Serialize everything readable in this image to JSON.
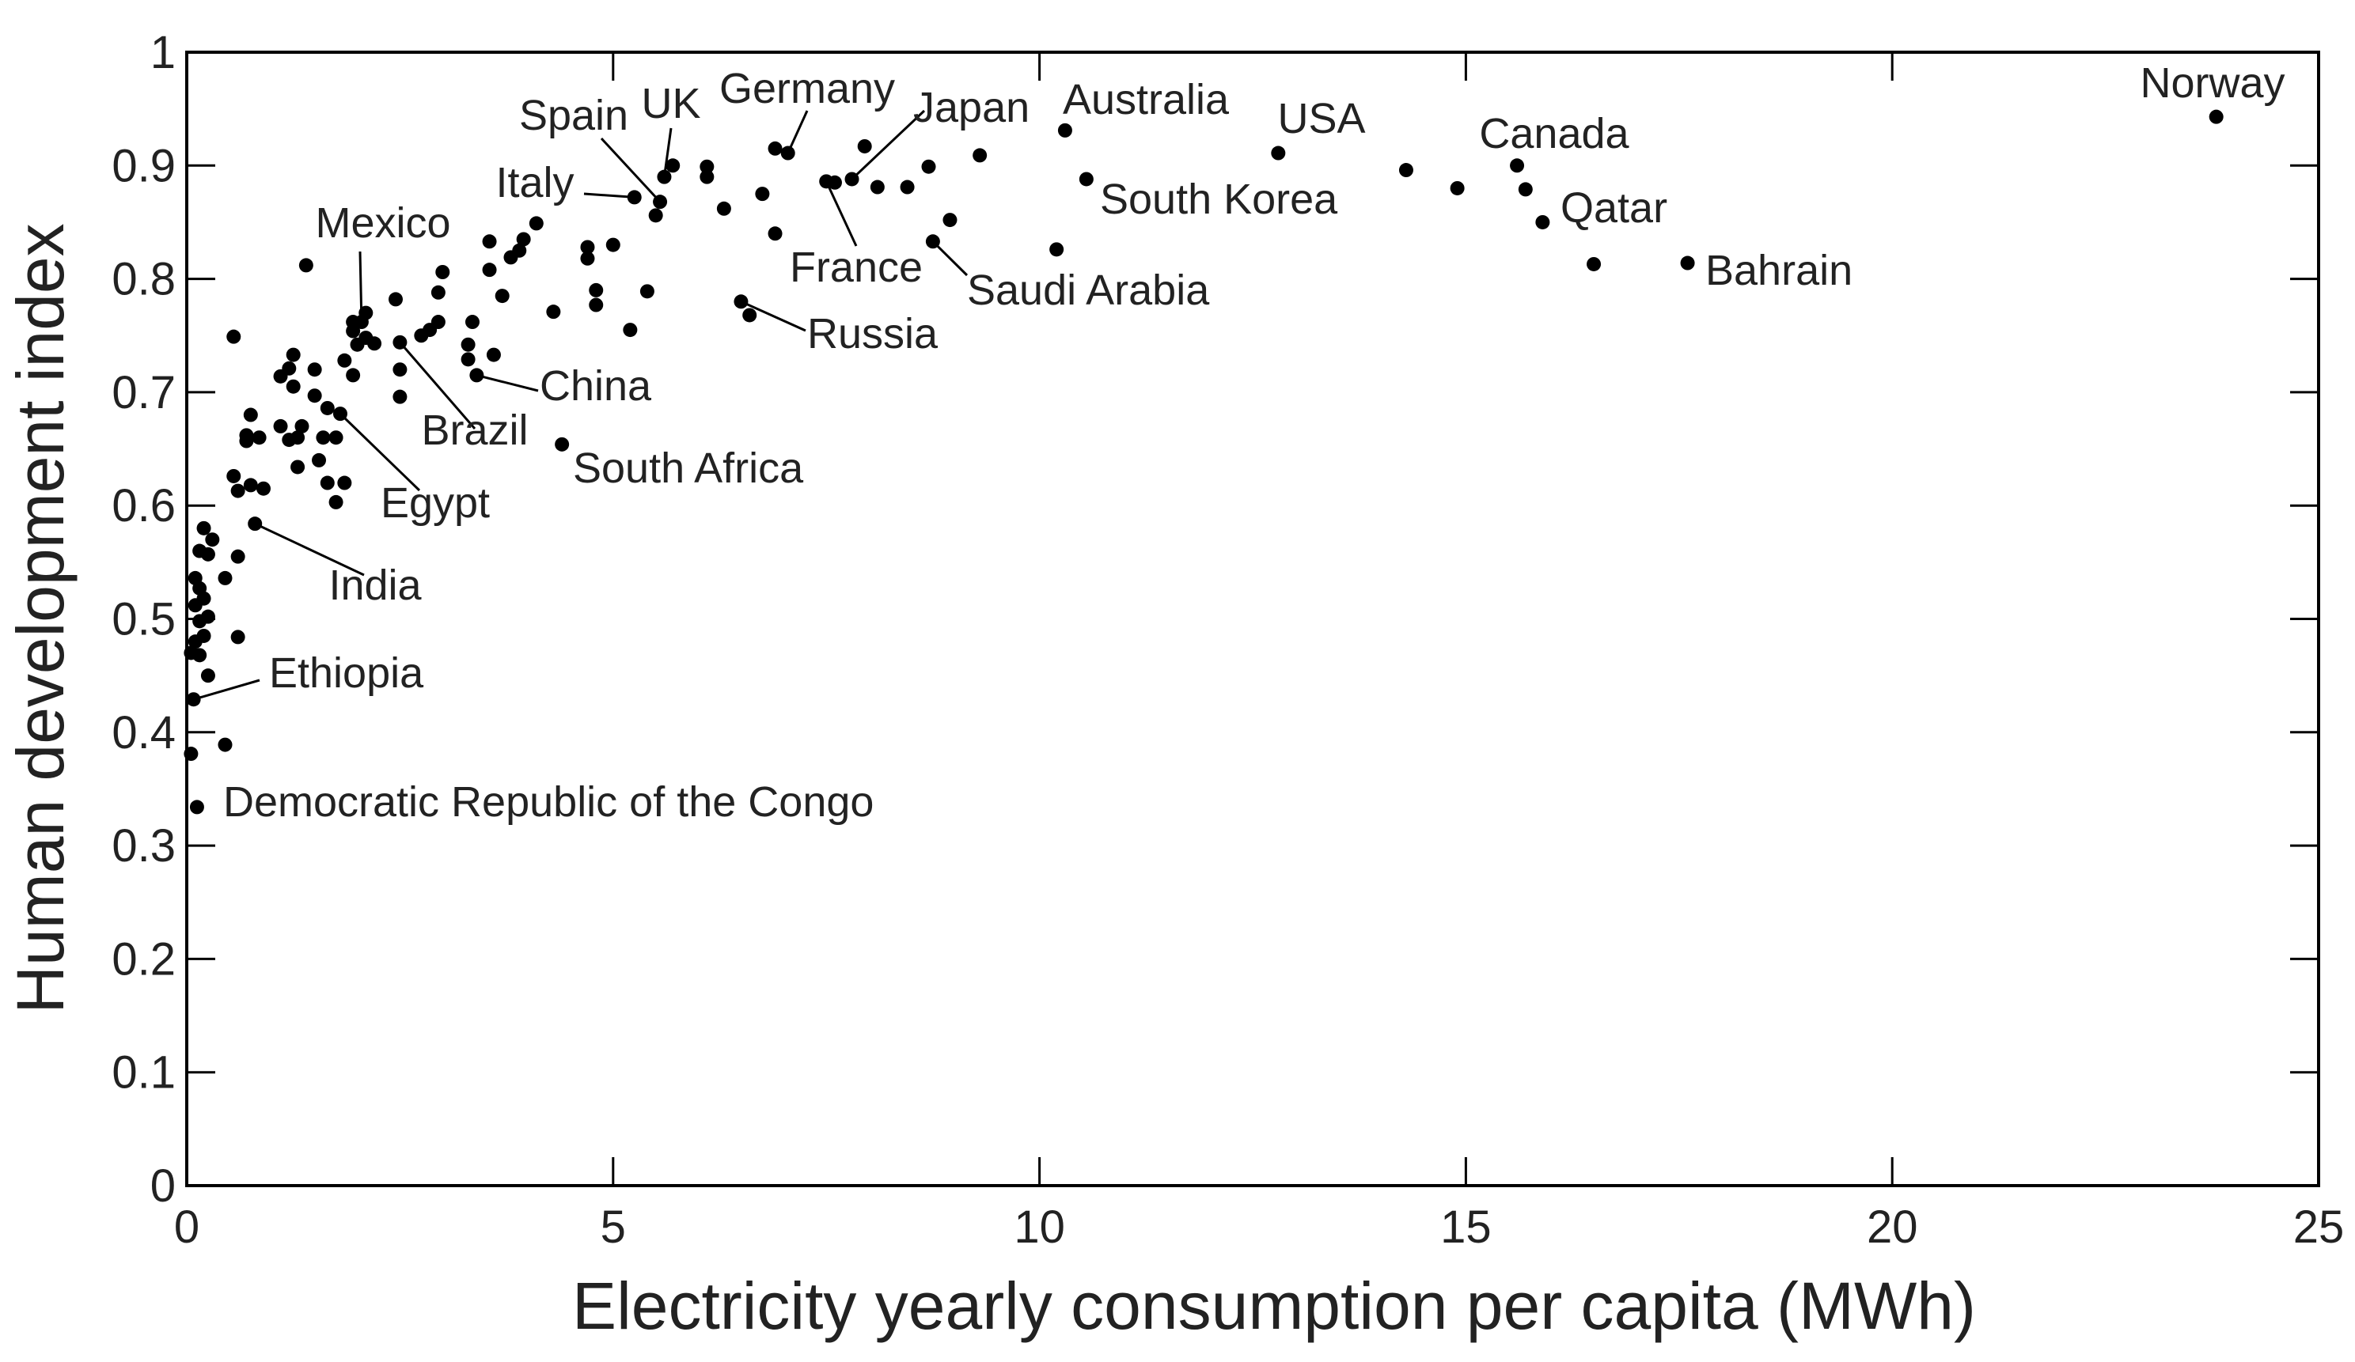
{
  "chart_data": {
    "type": "scatter",
    "title": "",
    "xlabel": "Electricity yearly consumption per capita (MWh)",
    "ylabel": "Human development index",
    "xlim": [
      0,
      25
    ],
    "ylim": [
      0,
      1
    ],
    "xticks": [
      "0",
      "5",
      "10",
      "15",
      "20",
      "25"
    ],
    "yticks": [
      "0",
      "0.1",
      "0.2",
      "0.3",
      "0.4",
      "0.5",
      "0.6",
      "0.7",
      "0.8",
      "0.9",
      "1"
    ],
    "grid": false,
    "marker_color": "#000000",
    "labeled_points": [
      {
        "name": "Norway",
        "x": 23.8,
        "y": 0.943
      },
      {
        "name": "USA",
        "x": 12.8,
        "y": 0.911
      },
      {
        "name": "Australia",
        "x": 10.3,
        "y": 0.931
      },
      {
        "name": "Canada",
        "x": 15.6,
        "y": 0.9
      },
      {
        "name": "Qatar",
        "x": 15.9,
        "y": 0.85
      },
      {
        "name": "Bahrain",
        "x": 17.6,
        "y": 0.814
      },
      {
        "name": "South Korea",
        "x": 10.55,
        "y": 0.888
      },
      {
        "name": "Saudi Arabia",
        "x": 8.75,
        "y": 0.833
      },
      {
        "name": "Japan",
        "x": 7.8,
        "y": 0.888
      },
      {
        "name": "France",
        "x": 7.5,
        "y": 0.886
      },
      {
        "name": "Germany",
        "x": 7.05,
        "y": 0.911
      },
      {
        "name": "Russia",
        "x": 6.5,
        "y": 0.78
      },
      {
        "name": "UK",
        "x": 5.6,
        "y": 0.89
      },
      {
        "name": "Spain",
        "x": 5.55,
        "y": 0.868
      },
      {
        "name": "Italy",
        "x": 5.25,
        "y": 0.872
      },
      {
        "name": "South Africa",
        "x": 4.4,
        "y": 0.654
      },
      {
        "name": "China",
        "x": 3.4,
        "y": 0.715
      },
      {
        "name": "Brazil",
        "x": 2.5,
        "y": 0.744
      },
      {
        "name": "Mexico",
        "x": 2.05,
        "y": 0.762
      },
      {
        "name": "Egypt",
        "x": 1.8,
        "y": 0.681
      },
      {
        "name": "India",
        "x": 0.8,
        "y": 0.584
      },
      {
        "name": "Ethiopia",
        "x": 0.08,
        "y": 0.429
      },
      {
        "name": "Democratic Republic of the Congo",
        "x": 0.12,
        "y": 0.334
      }
    ],
    "points": [
      {
        "x": 5.7,
        "y": 0.9
      },
      {
        "x": 6.1,
        "y": 0.899
      },
      {
        "x": 6.1,
        "y": 0.89
      },
      {
        "x": 6.3,
        "y": 0.862
      },
      {
        "x": 6.75,
        "y": 0.875
      },
      {
        "x": 6.9,
        "y": 0.915
      },
      {
        "x": 6.9,
        "y": 0.84
      },
      {
        "x": 7.6,
        "y": 0.885
      },
      {
        "x": 7.95,
        "y": 0.917
      },
      {
        "x": 8.1,
        "y": 0.881
      },
      {
        "x": 8.45,
        "y": 0.881
      },
      {
        "x": 8.7,
        "y": 0.899
      },
      {
        "x": 8.95,
        "y": 0.852
      },
      {
        "x": 9.3,
        "y": 0.909
      },
      {
        "x": 10.2,
        "y": 0.826
      },
      {
        "x": 14.3,
        "y": 0.896
      },
      {
        "x": 14.9,
        "y": 0.88
      },
      {
        "x": 15.7,
        "y": 0.879
      },
      {
        "x": 16.5,
        "y": 0.813
      },
      {
        "x": 6.6,
        "y": 0.768
      },
      {
        "x": 5.5,
        "y": 0.856
      },
      {
        "x": 5.0,
        "y": 0.83
      },
      {
        "x": 5.2,
        "y": 0.755
      },
      {
        "x": 5.4,
        "y": 0.789
      },
      {
        "x": 4.7,
        "y": 0.828
      },
      {
        "x": 4.7,
        "y": 0.818
      },
      {
        "x": 4.8,
        "y": 0.79
      },
      {
        "x": 4.8,
        "y": 0.777
      },
      {
        "x": 4.3,
        "y": 0.771
      },
      {
        "x": 4.1,
        "y": 0.849
      },
      {
        "x": 3.95,
        "y": 0.835
      },
      {
        "x": 3.9,
        "y": 0.825
      },
      {
        "x": 3.8,
        "y": 0.819
      },
      {
        "x": 3.7,
        "y": 0.785
      },
      {
        "x": 3.55,
        "y": 0.833
      },
      {
        "x": 3.55,
        "y": 0.808
      },
      {
        "x": 3.6,
        "y": 0.733
      },
      {
        "x": 3.35,
        "y": 0.762
      },
      {
        "x": 3.3,
        "y": 0.742
      },
      {
        "x": 3.3,
        "y": 0.729
      },
      {
        "x": 3.0,
        "y": 0.806
      },
      {
        "x": 2.95,
        "y": 0.788
      },
      {
        "x": 2.95,
        "y": 0.762
      },
      {
        "x": 2.85,
        "y": 0.755
      },
      {
        "x": 2.75,
        "y": 0.75
      },
      {
        "x": 2.45,
        "y": 0.782
      },
      {
        "x": 2.5,
        "y": 0.72
      },
      {
        "x": 2.5,
        "y": 0.696
      },
      {
        "x": 2.1,
        "y": 0.77
      },
      {
        "x": 2.1,
        "y": 0.748
      },
      {
        "x": 2.2,
        "y": 0.743
      },
      {
        "x": 1.95,
        "y": 0.762
      },
      {
        "x": 1.95,
        "y": 0.754
      },
      {
        "x": 2.0,
        "y": 0.742
      },
      {
        "x": 1.85,
        "y": 0.728
      },
      {
        "x": 1.95,
        "y": 0.715
      },
      {
        "x": 1.4,
        "y": 0.812
      },
      {
        "x": 1.25,
        "y": 0.733
      },
      {
        "x": 1.2,
        "y": 0.721
      },
      {
        "x": 1.1,
        "y": 0.714
      },
      {
        "x": 1.25,
        "y": 0.705
      },
      {
        "x": 1.5,
        "y": 0.72
      },
      {
        "x": 1.5,
        "y": 0.697
      },
      {
        "x": 1.65,
        "y": 0.686
      },
      {
        "x": 1.6,
        "y": 0.66
      },
      {
        "x": 1.75,
        "y": 0.66
      },
      {
        "x": 1.35,
        "y": 0.67
      },
      {
        "x": 1.3,
        "y": 0.66
      },
      {
        "x": 1.1,
        "y": 0.67
      },
      {
        "x": 1.2,
        "y": 0.658
      },
      {
        "x": 1.55,
        "y": 0.64
      },
      {
        "x": 1.3,
        "y": 0.634
      },
      {
        "x": 1.65,
        "y": 0.62
      },
      {
        "x": 1.85,
        "y": 0.62
      },
      {
        "x": 1.75,
        "y": 0.603
      },
      {
        "x": 0.55,
        "y": 0.749
      },
      {
        "x": 0.75,
        "y": 0.68
      },
      {
        "x": 0.7,
        "y": 0.662
      },
      {
        "x": 0.7,
        "y": 0.657
      },
      {
        "x": 0.85,
        "y": 0.66
      },
      {
        "x": 0.55,
        "y": 0.626
      },
      {
        "x": 0.6,
        "y": 0.613
      },
      {
        "x": 0.75,
        "y": 0.618
      },
      {
        "x": 0.9,
        "y": 0.615
      },
      {
        "x": 0.6,
        "y": 0.555
      },
      {
        "x": 0.2,
        "y": 0.58
      },
      {
        "x": 0.3,
        "y": 0.57
      },
      {
        "x": 0.15,
        "y": 0.56
      },
      {
        "x": 0.25,
        "y": 0.557
      },
      {
        "x": 0.45,
        "y": 0.536
      },
      {
        "x": 0.1,
        "y": 0.536
      },
      {
        "x": 0.15,
        "y": 0.527
      },
      {
        "x": 0.2,
        "y": 0.518
      },
      {
        "x": 0.1,
        "y": 0.512
      },
      {
        "x": 0.25,
        "y": 0.502
      },
      {
        "x": 0.15,
        "y": 0.498
      },
      {
        "x": 0.2,
        "y": 0.485
      },
      {
        "x": 0.1,
        "y": 0.48
      },
      {
        "x": 0.05,
        "y": 0.47
      },
      {
        "x": 0.15,
        "y": 0.468
      },
      {
        "x": 0.6,
        "y": 0.484
      },
      {
        "x": 0.25,
        "y": 0.45
      },
      {
        "x": 0.45,
        "y": 0.389
      },
      {
        "x": 0.05,
        "y": 0.381
      }
    ]
  }
}
